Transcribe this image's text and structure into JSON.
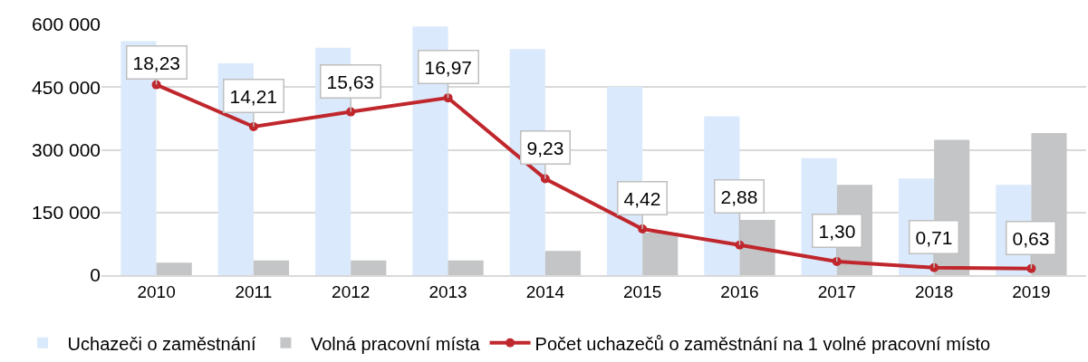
{
  "chart_data": {
    "type": "bar",
    "categories": [
      "2010",
      "2011",
      "2012",
      "2013",
      "2014",
      "2015",
      "2016",
      "2017",
      "2018",
      "2019"
    ],
    "series": [
      {
        "name": "Uchazeči o zaměstnání",
        "color": "#dae9fb",
        "values": [
          560000,
          507000,
          544000,
          595000,
          541000,
          451000,
          380000,
          280000,
          231000,
          216000
        ]
      },
      {
        "name": "Volná pracovní místa",
        "color": "#c4c5c7",
        "values": [
          30000,
          35000,
          35000,
          35000,
          58000,
          102000,
          132000,
          216000,
          324000,
          340000
        ]
      },
      {
        "name": "Počet uchazečů o zaměstnání na 1 volné pracovní místo",
        "type": "line",
        "axis": "y2",
        "color": "#c0272d",
        "values": [
          18.23,
          14.21,
          15.63,
          16.97,
          9.23,
          4.42,
          2.88,
          1.3,
          0.71,
          0.63
        ],
        "value_labels": [
          "18,23",
          "14,21",
          "15,63",
          "16,97",
          "9,23",
          "4,42",
          "2,88",
          "1,30",
          "0,71",
          "0,63"
        ]
      }
    ],
    "ylim": [
      0,
      600000
    ],
    "yticks": [
      0,
      {
        "value": 150000,
        "label": "150 000"
      },
      {
        "value": 300000,
        "label": "300 000"
      },
      {
        "value": 450000,
        "label": "450 000"
      },
      {
        "value": 600000,
        "label": "600 000"
      }
    ],
    "y2lim": [
      0,
      24
    ],
    "grid": "y",
    "legend": "bottom",
    "marker": "circle",
    "tick_labels": "xy"
  }
}
